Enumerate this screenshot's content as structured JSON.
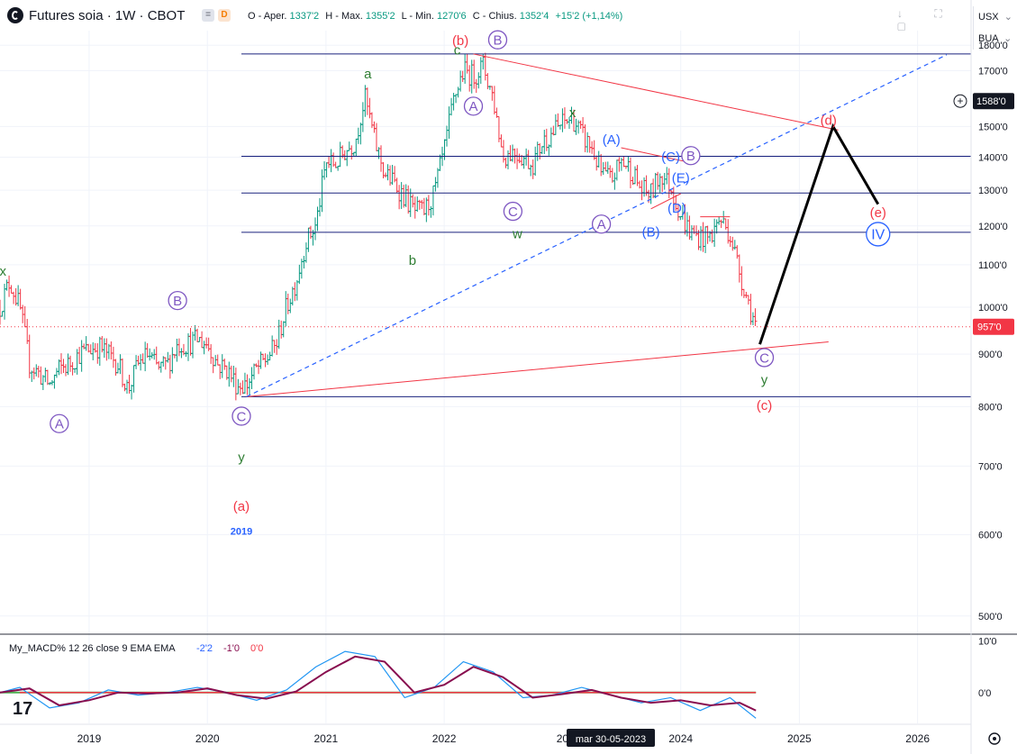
{
  "header": {
    "symbol": "Futures soia · 1W · CBOT",
    "badge_eq": "=",
    "badge_d": "D",
    "ohlc": [
      {
        "label": "O - Aper.",
        "value": "1337'2"
      },
      {
        "label": "H - Max.",
        "value": "1355'2"
      },
      {
        "label": "L - Min.",
        "value": "1270'6"
      },
      {
        "label": "C - Chius.",
        "value": "1352'4"
      }
    ],
    "change": "+15'2 (+1,14%)",
    "currency": "USX",
    "currency_arrow": "⌄",
    "mode": "BUA",
    "mode_arrow": "⌄",
    "window_icons": "↓ ⛶ ▢"
  },
  "price_axis": {
    "ticks": [
      {
        "value": 1800,
        "label": "1800'0"
      },
      {
        "value": 1700,
        "label": "1700'0"
      },
      {
        "value": 1500,
        "label": "1500'0"
      },
      {
        "value": 1400,
        "label": "1400'0"
      },
      {
        "value": 1300,
        "label": "1300'0"
      },
      {
        "value": 1200,
        "label": "1200'0"
      },
      {
        "value": 1100,
        "label": "1100'0"
      },
      {
        "value": 1000,
        "label": "1000'0"
      },
      {
        "value": 900,
        "label": "900'0"
      },
      {
        "value": 800,
        "label": "800'0"
      },
      {
        "value": 700,
        "label": "700'0"
      },
      {
        "value": 600,
        "label": "600'0"
      },
      {
        "value": 500,
        "label": "500'0"
      }
    ],
    "crosshair_label": "1588'0",
    "crosshair_price": 1588,
    "last_price_label": "957'0",
    "last_price": 957,
    "last_price_color": "#f23645"
  },
  "time_axis": {
    "ticks": [
      {
        "date": "2019-01-01",
        "label": "2019"
      },
      {
        "date": "2020-01-01",
        "label": "2020"
      },
      {
        "date": "2021-01-01",
        "label": "2021"
      },
      {
        "date": "2022-01-01",
        "label": "2022"
      },
      {
        "date": "2024-01-01",
        "label": "2024"
      },
      {
        "date": "2025-01-01",
        "label": "2025"
      },
      {
        "date": "2026-01-01",
        "label": "2026"
      }
    ],
    "partial_label": "20",
    "partial_date": "2023-01-01",
    "cursor_label": "mar 30-05-2023",
    "cursor_date": "2023-05-30"
  },
  "macd": {
    "title": "My_MACD% 12 26 close 9 EMA EMA",
    "values": [
      "-2'2",
      "-1'0",
      "0'0"
    ],
    "value_colors": [
      "#2962ff",
      "#880e4f",
      "#f23645"
    ],
    "axis": [
      {
        "value": 10,
        "label": "10'0"
      },
      {
        "value": 0,
        "label": "0'0"
      }
    ],
    "ylim": [
      -6,
      11
    ]
  },
  "chart_data": {
    "type": "line",
    "subtype": "weekly OHLC bars",
    "title": "Futures soia · 1W · CBOT",
    "xlabel": "",
    "ylabel": "",
    "ylim": [
      480,
      1860
    ],
    "xlim": [
      "2018-04-01",
      "2026-06-15"
    ],
    "up_color": "#089981",
    "down_color": "#f23645",
    "price_path": [
      [
        "2018-04-01",
        1000
      ],
      [
        "2018-05-01",
        1060
      ],
      [
        "2018-06-01",
        1000
      ],
      [
        "2018-07-01",
        880
      ],
      [
        "2018-08-01",
        860
      ],
      [
        "2018-09-01",
        840
      ],
      [
        "2018-10-01",
        870
      ],
      [
        "2018-11-01",
        880
      ],
      [
        "2018-12-01",
        900
      ],
      [
        "2019-01-01",
        910
      ],
      [
        "2019-02-01",
        915
      ],
      [
        "2019-03-01",
        900
      ],
      [
        "2019-04-01",
        880
      ],
      [
        "2019-05-01",
        830
      ],
      [
        "2019-06-01",
        880
      ],
      [
        "2019-07-01",
        900
      ],
      [
        "2019-08-01",
        870
      ],
      [
        "2019-09-01",
        880
      ],
      [
        "2019-10-01",
        920
      ],
      [
        "2019-11-01",
        920
      ],
      [
        "2019-12-01",
        930
      ],
      [
        "2020-01-01",
        920
      ],
      [
        "2020-02-01",
        880
      ],
      [
        "2020-03-01",
        870
      ],
      [
        "2020-04-01",
        840
      ],
      [
        "2020-05-01",
        840
      ],
      [
        "2020-06-01",
        870
      ],
      [
        "2020-07-01",
        890
      ],
      [
        "2020-08-01",
        920
      ],
      [
        "2020-09-01",
        1000
      ],
      [
        "2020-10-01",
        1060
      ],
      [
        "2020-11-01",
        1160
      ],
      [
        "2020-12-01",
        1200
      ],
      [
        "2021-01-01",
        1380
      ],
      [
        "2021-02-01",
        1380
      ],
      [
        "2021-03-01",
        1420
      ],
      [
        "2021-04-01",
        1450
      ],
      [
        "2021-05-01",
        1600
      ],
      [
        "2021-06-01",
        1450
      ],
      [
        "2021-07-01",
        1350
      ],
      [
        "2021-08-01",
        1320
      ],
      [
        "2021-09-01",
        1280
      ],
      [
        "2021-10-01",
        1240
      ],
      [
        "2021-11-01",
        1240
      ],
      [
        "2021-12-01",
        1290
      ],
      [
        "2022-01-01",
        1420
      ],
      [
        "2022-02-01",
        1600
      ],
      [
        "2022-03-01",
        1700
      ],
      [
        "2022-04-01",
        1680
      ],
      [
        "2022-05-01",
        1720
      ],
      [
        "2022-06-01",
        1600
      ],
      [
        "2022-07-01",
        1400
      ],
      [
        "2022-08-01",
        1420
      ],
      [
        "2022-09-01",
        1400
      ],
      [
        "2022-10-01",
        1380
      ],
      [
        "2022-11-01",
        1450
      ],
      [
        "2022-12-01",
        1480
      ],
      [
        "2023-01-01",
        1510
      ],
      [
        "2023-02-01",
        1530
      ],
      [
        "2023-03-01",
        1470
      ],
      [
        "2023-04-01",
        1430
      ],
      [
        "2023-05-01",
        1350
      ],
      [
        "2023-06-01",
        1330
      ],
      [
        "2023-07-01",
        1390
      ],
      [
        "2023-08-01",
        1360
      ],
      [
        "2023-09-01",
        1300
      ],
      [
        "2023-10-01",
        1290
      ],
      [
        "2023-11-01",
        1350
      ],
      [
        "2023-12-01",
        1310
      ],
      [
        "2024-01-01",
        1230
      ],
      [
        "2024-02-01",
        1180
      ],
      [
        "2024-03-01",
        1170
      ],
      [
        "2024-04-01",
        1170
      ],
      [
        "2024-05-01",
        1220
      ],
      [
        "2024-06-01",
        1180
      ],
      [
        "2024-07-01",
        1080
      ],
      [
        "2024-08-01",
        1000
      ],
      [
        "2024-08-20",
        957
      ]
    ],
    "horizontal_levels": [
      {
        "price": 1765,
        "start": "2020-04-15"
      },
      {
        "price": 1403,
        "start": "2020-04-15"
      },
      {
        "price": 1292,
        "start": "2020-04-15"
      },
      {
        "price": 1183,
        "start": "2020-04-15"
      },
      {
        "price": 818,
        "start": "2020-04-15"
      }
    ],
    "trendlines": [
      {
        "color": "#f23645",
        "width": 1,
        "dash": false,
        "points": [
          [
            "2022-04-01",
            1765
          ],
          [
            "2025-05-01",
            1488
          ]
        ]
      },
      {
        "color": "#f23645",
        "width": 1,
        "dash": false,
        "points": [
          [
            "2020-05-01",
            818
          ],
          [
            "2025-04-01",
            925
          ]
        ]
      },
      {
        "color": "#2962ff",
        "width": 1.2,
        "dash": true,
        "points": [
          [
            "2020-05-01",
            818
          ],
          [
            "2026-04-01",
            1762
          ]
        ]
      },
      {
        "color": "#f23645",
        "width": 1,
        "dash": false,
        "points": [
          [
            "2023-07-01",
            1430
          ],
          [
            "2024-02-01",
            1383
          ]
        ]
      },
      {
        "color": "#f23645",
        "width": 1,
        "dash": false,
        "points": [
          [
            "2023-10-01",
            1247
          ],
          [
            "2024-01-01",
            1290
          ]
        ]
      },
      {
        "color": "#f23645",
        "width": 1,
        "dash": false,
        "points": [
          [
            "2024-03-01",
            1225
          ],
          [
            "2024-06-01",
            1225
          ]
        ]
      }
    ],
    "projection": [
      [
        "2024-09-01",
        920
      ],
      [
        "2025-04-15",
        1500
      ],
      [
        "2025-09-01",
        1260
      ]
    ],
    "wave_labels": [
      {
        "text": "x",
        "date": "2018-04-10",
        "price": 1085,
        "color": "#2e7d32",
        "circle": false
      },
      {
        "text": "A",
        "date": "2018-10-01",
        "price": 770,
        "color": "#7e57c2",
        "circle": true
      },
      {
        "text": "B",
        "date": "2019-10-01",
        "price": 1015,
        "color": "#7e57c2",
        "circle": true
      },
      {
        "text": "C",
        "date": "2020-04-15",
        "price": 783,
        "color": "#7e57c2",
        "circle": true
      },
      {
        "text": "y",
        "date": "2020-04-15",
        "price": 715,
        "color": "#2e7d32",
        "circle": false
      },
      {
        "text": "(a)",
        "date": "2020-04-15",
        "price": 640,
        "color": "#f23645",
        "circle": false
      },
      {
        "text": "2019",
        "date": "2020-04-15",
        "price": 605,
        "color": "#2962ff",
        "circle": false,
        "small": true
      },
      {
        "text": "a",
        "date": "2021-05-10",
        "price": 1690,
        "color": "#2e7d32",
        "circle": false
      },
      {
        "text": "b",
        "date": "2021-09-25",
        "price": 1112,
        "color": "#2e7d32",
        "circle": false
      },
      {
        "text": "c",
        "date": "2022-02-10",
        "price": 1782,
        "color": "#2e7d32",
        "circle": false
      },
      {
        "text": "(b)",
        "date": "2022-02-20",
        "price": 1820,
        "color": "#f23645",
        "circle": false
      },
      {
        "text": "B",
        "date": "2022-06-15",
        "price": 1822,
        "color": "#7e57c2",
        "circle": true
      },
      {
        "text": "A",
        "date": "2022-04-01",
        "price": 1570,
        "color": "#7e57c2",
        "circle": true
      },
      {
        "text": "C",
        "date": "2022-08-01",
        "price": 1240,
        "color": "#7e57c2",
        "circle": true
      },
      {
        "text": "x",
        "date": "2023-02-01",
        "price": 1548,
        "color": "#2e7d32",
        "circle": false
      },
      {
        "text": "w",
        "date": "2022-08-15",
        "price": 1180,
        "color": "#2e7d32",
        "circle": false
      },
      {
        "text": "(A)",
        "date": "2023-06-01",
        "price": 1457,
        "color": "#2962ff",
        "circle": false
      },
      {
        "text": "A",
        "date": "2023-05-01",
        "price": 1205,
        "color": "#7e57c2",
        "circle": true
      },
      {
        "text": "(B)",
        "date": "2023-10-01",
        "price": 1185,
        "color": "#2962ff",
        "circle": false
      },
      {
        "text": "(C)",
        "date": "2023-12-01",
        "price": 1403,
        "color": "#2962ff",
        "circle": false
      },
      {
        "text": "B",
        "date": "2024-02-01",
        "price": 1405,
        "color": "#7e57c2",
        "circle": true
      },
      {
        "text": "(E)",
        "date": "2024-01-01",
        "price": 1338,
        "color": "#2962ff",
        "circle": false
      },
      {
        "text": "(D)",
        "date": "2023-12-20",
        "price": 1250,
        "color": "#2962ff",
        "circle": false
      },
      {
        "text": "(d)",
        "date": "2025-04-01",
        "price": 1522,
        "color": "#f23645",
        "circle": false
      },
      {
        "text": "(e)",
        "date": "2025-09-01",
        "price": 1238,
        "color": "#f23645",
        "circle": false
      },
      {
        "text": "IV",
        "date": "2025-09-01",
        "price": 1178,
        "color": "#2962ff",
        "circle": true,
        "big": true
      },
      {
        "text": "C",
        "date": "2024-09-15",
        "price": 893,
        "color": "#7e57c2",
        "circle": true
      },
      {
        "text": "y",
        "date": "2024-09-15",
        "price": 850,
        "color": "#2e7d32",
        "circle": false
      },
      {
        "text": "(c)",
        "date": "2024-09-15",
        "price": 803,
        "color": "#f23645",
        "circle": false
      }
    ]
  },
  "macd_data": {
    "lines": [
      {
        "name": "MACD",
        "color": "#2196f3",
        "points": [
          [
            "2018-04-01",
            0
          ],
          [
            "2018-06-01",
            1
          ],
          [
            "2018-09-01",
            -3
          ],
          [
            "2018-12-01",
            -2
          ],
          [
            "2019-03-01",
            0.5
          ],
          [
            "2019-06-01",
            -0.5
          ],
          [
            "2019-09-01",
            0
          ],
          [
            "2019-12-01",
            1
          ],
          [
            "2020-03-01",
            0
          ],
          [
            "2020-06-01",
            -1.5
          ],
          [
            "2020-09-01",
            0.5
          ],
          [
            "2020-12-01",
            5
          ],
          [
            "2021-03-01",
            8
          ],
          [
            "2021-06-01",
            7
          ],
          [
            "2021-09-01",
            -1
          ],
          [
            "2021-12-01",
            1
          ],
          [
            "2022-03-01",
            6
          ],
          [
            "2022-06-01",
            4
          ],
          [
            "2022-09-01",
            -1
          ],
          [
            "2022-12-01",
            -0.5
          ],
          [
            "2023-03-01",
            1
          ],
          [
            "2023-06-01",
            -0.5
          ],
          [
            "2023-09-01",
            -2
          ],
          [
            "2023-12-01",
            -1
          ],
          [
            "2024-03-01",
            -3.5
          ],
          [
            "2024-06-01",
            -1
          ],
          [
            "2024-08-20",
            -5
          ]
        ]
      },
      {
        "name": "Signal",
        "color": "#880e4f",
        "points": [
          [
            "2018-04-01",
            0
          ],
          [
            "2018-07-01",
            0.8
          ],
          [
            "2018-10-01",
            -2.5
          ],
          [
            "2019-01-01",
            -1.5
          ],
          [
            "2019-04-01",
            0
          ],
          [
            "2019-07-01",
            -0.2
          ],
          [
            "2019-10-01",
            0
          ],
          [
            "2020-01-01",
            0.8
          ],
          [
            "2020-04-01",
            -0.5
          ],
          [
            "2020-07-01",
            -1.2
          ],
          [
            "2020-10-01",
            0.2
          ],
          [
            "2021-01-01",
            4
          ],
          [
            "2021-04-01",
            7
          ],
          [
            "2021-07-01",
            6
          ],
          [
            "2021-10-01",
            0
          ],
          [
            "2022-01-01",
            1.5
          ],
          [
            "2022-04-01",
            5
          ],
          [
            "2022-07-01",
            3
          ],
          [
            "2022-10-01",
            -1
          ],
          [
            "2023-01-01",
            -0.3
          ],
          [
            "2023-04-01",
            0.5
          ],
          [
            "2023-07-01",
            -1
          ],
          [
            "2023-10-01",
            -2
          ],
          [
            "2024-01-01",
            -1.5
          ],
          [
            "2024-04-01",
            -2.5
          ],
          [
            "2024-07-01",
            -2
          ],
          [
            "2024-08-20",
            -3.5
          ]
        ]
      }
    ],
    "zero_line_color": "#4caf50",
    "red_level": 0,
    "red_level_color": "#f23645"
  }
}
